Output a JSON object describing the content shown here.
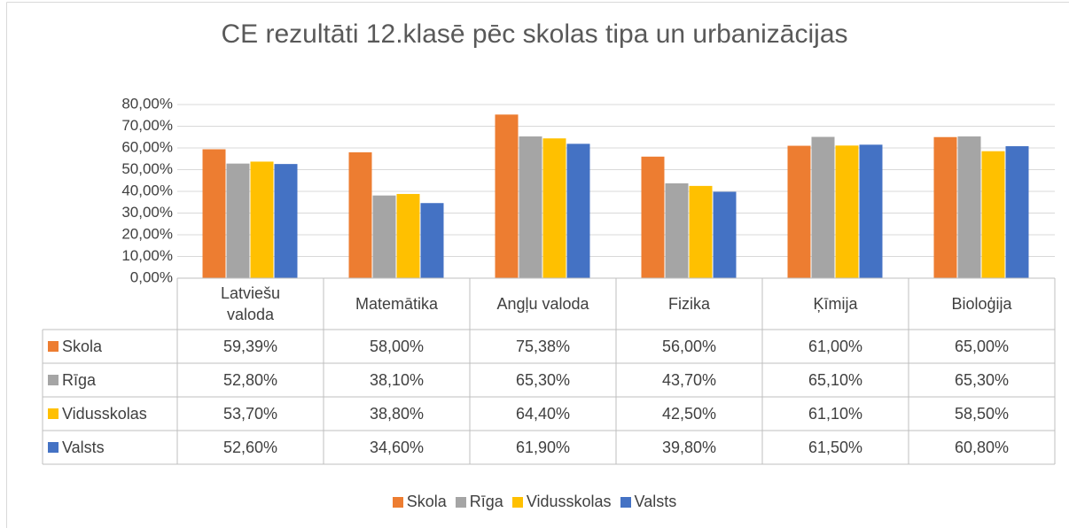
{
  "chart_data": {
    "type": "bar",
    "title": "CE rezultāti 12.klasē pēc skolas tipa un urbanizācijas",
    "categories": [
      "Latviešu valoda",
      "Matemātika",
      "Angļu valoda",
      "Fizika",
      "Ķīmija",
      "Bioloģija"
    ],
    "series": [
      {
        "name": "Skola",
        "color": "#ed7d31",
        "values": [
          59.39,
          58.0,
          75.38,
          56.0,
          61.0,
          65.0
        ],
        "value_labels": [
          "59,39%",
          "58,00%",
          "75,38%",
          "56,00%",
          "61,00%",
          "65,00%"
        ]
      },
      {
        "name": "Rīga",
        "color": "#a5a5a5",
        "values": [
          52.8,
          38.1,
          65.3,
          43.7,
          65.1,
          65.3
        ],
        "value_labels": [
          "52,80%",
          "38,10%",
          "65,30%",
          "43,70%",
          "65,10%",
          "65,30%"
        ]
      },
      {
        "name": "Vidusskolas",
        "color": "#ffc000",
        "values": [
          53.7,
          38.8,
          64.4,
          42.5,
          61.1,
          58.5
        ],
        "value_labels": [
          "53,70%",
          "38,80%",
          "64,40%",
          "42,50%",
          "61,10%",
          "58,50%"
        ]
      },
      {
        "name": "Valsts",
        "color": "#4472c4",
        "values": [
          52.6,
          34.6,
          61.9,
          39.8,
          61.5,
          60.8
        ],
        "value_labels": [
          "52,60%",
          "34,60%",
          "61,90%",
          "39,80%",
          "61,50%",
          "60,80%"
        ]
      }
    ],
    "ylim": [
      0,
      80
    ],
    "yticks": [
      {
        "value": 0,
        "label": "0,00%"
      },
      {
        "value": 10,
        "label": "10,00%"
      },
      {
        "value": 20,
        "label": "20,00%"
      },
      {
        "value": 30,
        "label": "30,00%"
      },
      {
        "value": 40,
        "label": "40,00%"
      },
      {
        "value": 50,
        "label": "50,00%"
      },
      {
        "value": 60,
        "label": "60,00%"
      },
      {
        "value": 70,
        "label": "70,00%"
      },
      {
        "value": 80,
        "label": "80,00%"
      }
    ],
    "grid": true,
    "legend": "bottom"
  }
}
